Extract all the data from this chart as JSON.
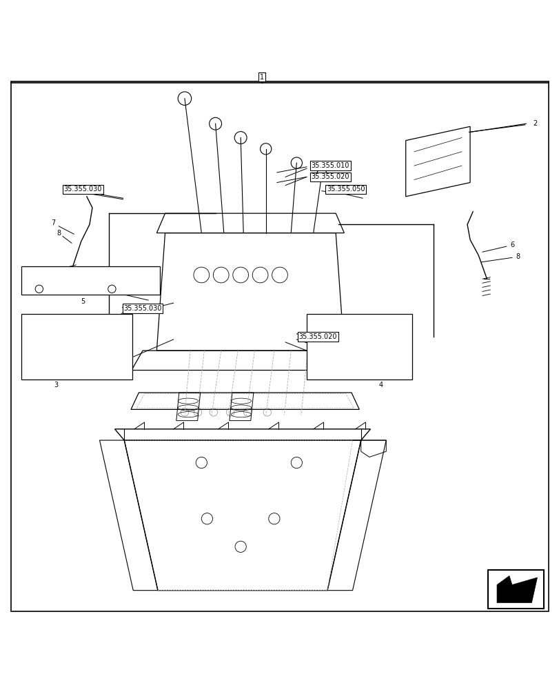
{
  "bg_color": "#ffffff",
  "line_color": "#000000",
  "light_line_color": "#888888",
  "border_color": "#000000",
  "fig_width": 8.12,
  "fig_height": 10.0,
  "dpi": 100
}
